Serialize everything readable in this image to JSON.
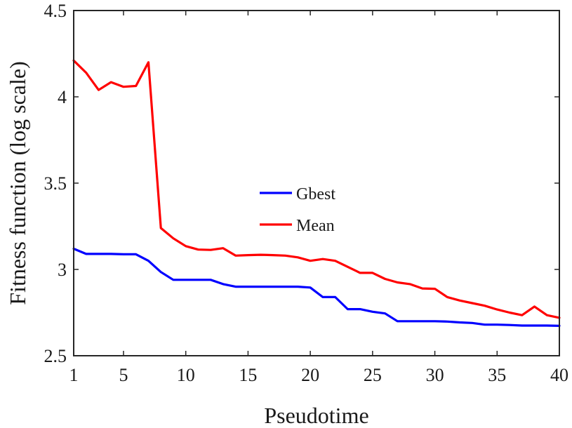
{
  "chart_data": {
    "type": "line",
    "xlabel": "Pseudotime",
    "ylabel": "Fitness function (log scale)",
    "xlim": [
      1,
      40
    ],
    "ylim": [
      2.5,
      4.5
    ],
    "x_ticks": [
      1,
      5,
      10,
      15,
      20,
      25,
      30,
      35,
      40
    ],
    "y_ticks": [
      2.5,
      3,
      3.5,
      4,
      4.5
    ],
    "y_tick_labels": [
      "2.5",
      "3",
      "3.5",
      "4",
      "4.5"
    ],
    "grid": false,
    "legend_position": "center",
    "x": [
      1,
      2,
      3,
      4,
      5,
      6,
      7,
      8,
      9,
      10,
      11,
      12,
      13,
      14,
      15,
      16,
      17,
      18,
      19,
      20,
      21,
      22,
      23,
      24,
      25,
      26,
      27,
      28,
      29,
      30,
      31,
      32,
      33,
      34,
      35,
      36,
      37,
      38,
      39,
      40
    ],
    "series": [
      {
        "name": "Gbest",
        "color": "#0000ff",
        "values": [
          3.12,
          3.09,
          3.09,
          3.09,
          3.088,
          3.088,
          3.05,
          2.985,
          2.94,
          2.94,
          2.94,
          2.94,
          2.915,
          2.9,
          2.9,
          2.9,
          2.9,
          2.9,
          2.9,
          2.895,
          2.84,
          2.84,
          2.77,
          2.77,
          2.755,
          2.745,
          2.7,
          2.7,
          2.7,
          2.7,
          2.698,
          2.693,
          2.69,
          2.68,
          2.68,
          2.678,
          2.675,
          2.675,
          2.675,
          2.673
        ]
      },
      {
        "name": "Mean",
        "color": "#ff0000",
        "values": [
          4.21,
          4.14,
          4.04,
          4.085,
          4.058,
          4.063,
          4.2,
          3.24,
          3.18,
          3.135,
          3.115,
          3.113,
          3.123,
          3.08,
          3.083,
          3.085,
          3.083,
          3.08,
          3.07,
          3.05,
          3.06,
          3.05,
          3.015,
          2.98,
          2.98,
          2.945,
          2.925,
          2.915,
          2.89,
          2.888,
          2.84,
          2.82,
          2.805,
          2.79,
          2.768,
          2.75,
          2.735,
          2.785,
          2.735,
          2.72
        ]
      }
    ]
  }
}
